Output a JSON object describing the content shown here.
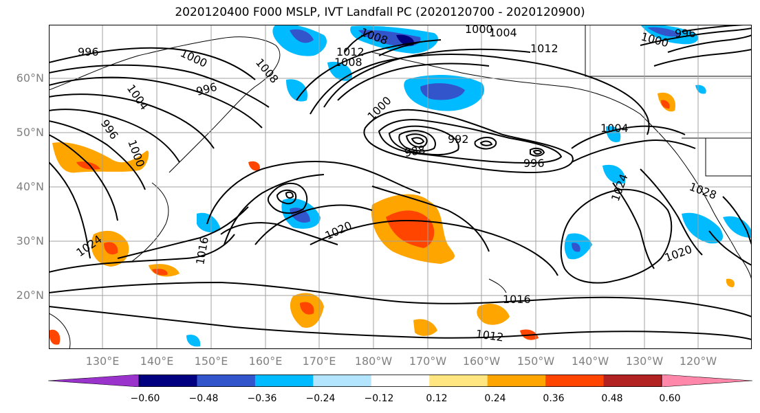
{
  "title": "2020120400 F000 MSLP, IVT Landfall PC (2020120700 - 2020120900)",
  "lat_labels": [
    "60°N",
    "50°N",
    "40°N",
    "30°N",
    "20°N"
  ],
  "lon_labels": [
    "130°E",
    "140°E",
    "150°E",
    "160°E",
    "170°E",
    "180°W",
    "170°W",
    "160°W",
    "150°W",
    "140°W",
    "130°W",
    "120°W"
  ],
  "contour_labels": [
    "996",
    "1000",
    "1004",
    "1008",
    "1008",
    "1000",
    "1004",
    "1012",
    "1012",
    "1008",
    "1000",
    "996",
    "996",
    "1000",
    "996",
    "1000",
    "992",
    "988",
    "996",
    "1004",
    "1016",
    "1020",
    "1024",
    "1024",
    "1028",
    "1020",
    "1016",
    "1012"
  ],
  "colorbar": {
    "ticks": [
      "−0.60",
      "−0.48",
      "−0.36",
      "−0.24",
      "−0.12",
      "0.12",
      "0.24",
      "0.36",
      "0.48",
      "0.60"
    ],
    "colors": [
      "#9933cc",
      "#000080",
      "#3355cc",
      "#00bbff",
      "#b3e5ff",
      "#ffffff",
      "#ffe680",
      "#ffa500",
      "#ff4500",
      "#b22222",
      "#ff88aa"
    ]
  },
  "colors": {
    "contour": "#000000",
    "grid": "#a0a0a0",
    "axis_label": "#808080"
  }
}
